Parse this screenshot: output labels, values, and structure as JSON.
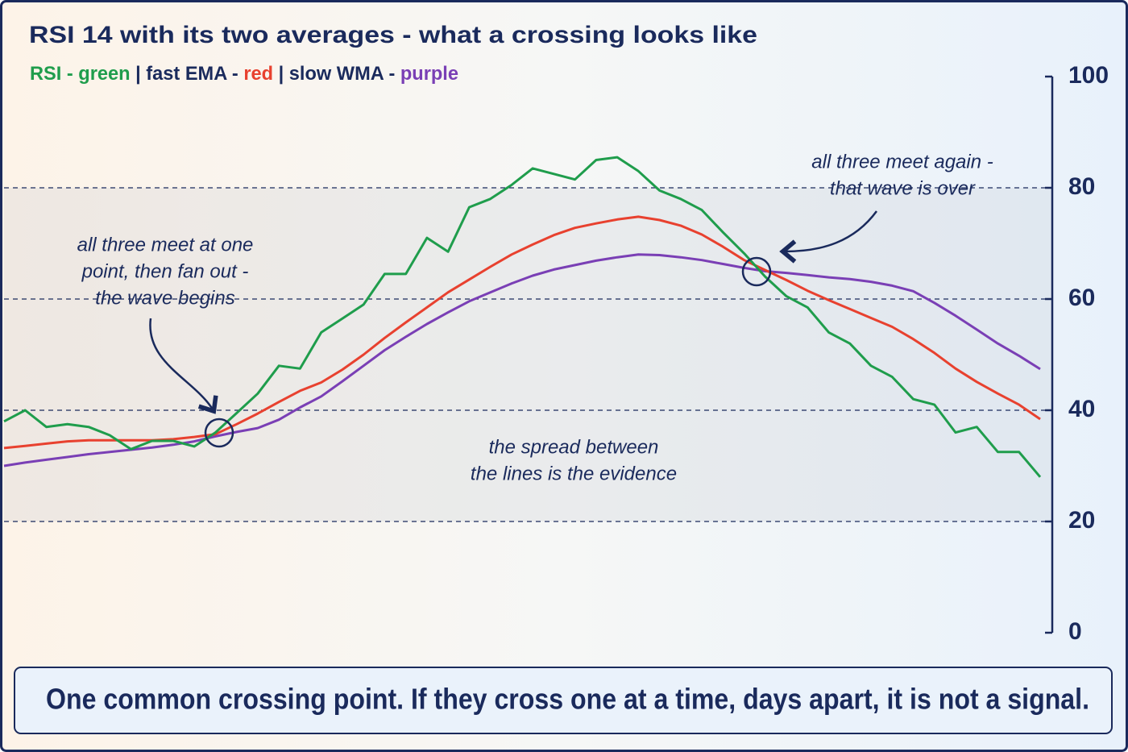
{
  "chart_data": {
    "type": "line",
    "title": "RSI 14 with its two averages - what a crossing looks like",
    "subtitle": [
      {
        "text": "RSI - green",
        "color": "#1f9d4c"
      },
      {
        "text": " | fast EMA - ",
        "color": "#1a2a5c"
      },
      {
        "text": "red",
        "color": "#e8412f"
      },
      {
        "text": " | slow WMA - ",
        "color": "#1a2a5c"
      },
      {
        "text": "purple",
        "color": "#7a3fb5"
      }
    ],
    "ylim": [
      0,
      100
    ],
    "yticks": [
      0,
      20,
      40,
      60,
      80,
      100
    ],
    "grid": true,
    "shaded_band": [
      20,
      80
    ],
    "series": [
      {
        "name": "RSI",
        "color": "#1f9d4c",
        "values": [
          38,
          40,
          37,
          37.5,
          37,
          35.5,
          33,
          34.5,
          34.5,
          33.5,
          36,
          39.5,
          43,
          48,
          47.5,
          54,
          56.5,
          59,
          64.5,
          64.5,
          71,
          68.5,
          76.5,
          78,
          80.5,
          83.5,
          82.5,
          81.5,
          85,
          85.5,
          83,
          79.5,
          78,
          76,
          72,
          68.2,
          64,
          60.5,
          58.5,
          54,
          52,
          48,
          46,
          42,
          41,
          36,
          37,
          32.5,
          32.5,
          28
        ]
      },
      {
        "name": "fast EMA",
        "color": "#e8412f",
        "values": [
          33.2,
          33.6,
          34,
          34.4,
          34.6,
          34.6,
          34.6,
          34.6,
          34.8,
          35.2,
          35.7,
          37.5,
          39.4,
          41.5,
          43.5,
          45,
          47.3,
          50,
          53,
          55.8,
          58.5,
          61.2,
          63.5,
          65.8,
          68,
          69.8,
          71.5,
          72.8,
          73.6,
          74.3,
          74.8,
          74.2,
          73.2,
          71.6,
          69.4,
          67,
          65.2,
          63.4,
          61.5,
          59.8,
          58.2,
          56.6,
          55,
          52.8,
          50.3,
          47.5,
          45.1,
          43,
          41,
          38.4
        ]
      },
      {
        "name": "slow WMA",
        "color": "#7a3fb5",
        "values": [
          30,
          30.6,
          31.1,
          31.6,
          32.1,
          32.5,
          32.9,
          33.3,
          33.8,
          34.4,
          35.3,
          36.1,
          36.8,
          38.3,
          40.5,
          42.5,
          45.2,
          48,
          50.8,
          53.2,
          55.5,
          57.6,
          59.6,
          61.2,
          62.8,
          64.2,
          65.3,
          66.1,
          66.9,
          67.5,
          68,
          67.9,
          67.5,
          67,
          66.3,
          65.6,
          65,
          64.7,
          64.3,
          63.9,
          63.6,
          63.1,
          62.4,
          61.4,
          59.3,
          57,
          54.5,
          52,
          49.8,
          47.4
        ]
      }
    ],
    "annotations": [
      [
        "all three meet at one",
        "point, then fan out -",
        "the wave begins"
      ],
      [
        "all three meet again -",
        "that wave is over"
      ],
      [
        "the spread between",
        "the lines is the evidence"
      ]
    ],
    "footer": "One common crossing point. If they cross one at a time, days apart, it is not a signal."
  }
}
